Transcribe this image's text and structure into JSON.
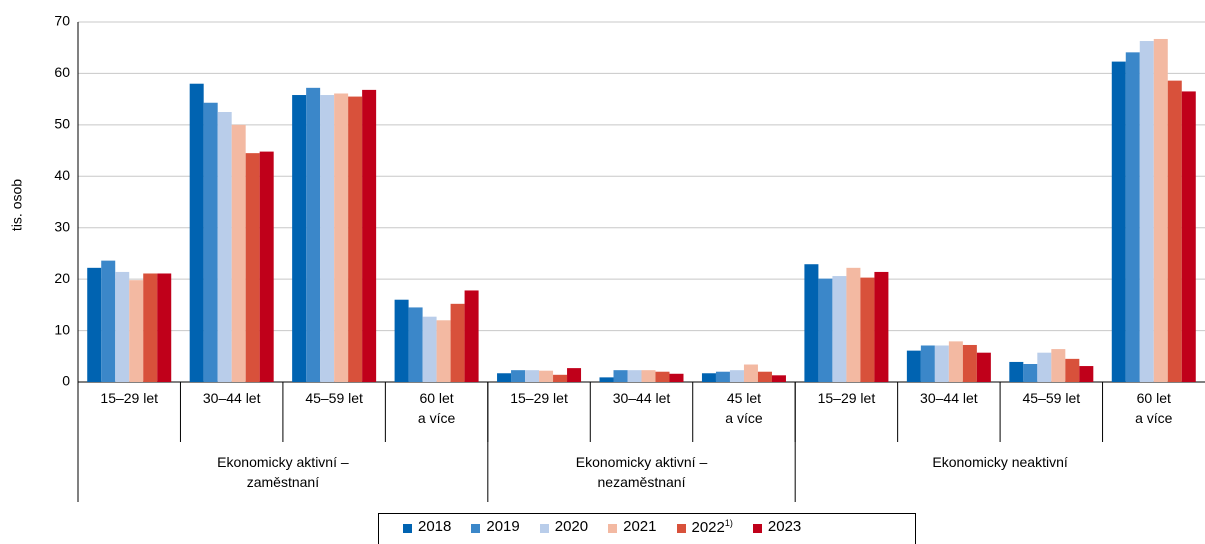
{
  "chart_data": {
    "type": "bar",
    "y_label": "tis. osob",
    "ylim": [
      0,
      70
    ],
    "yticks": [
      0,
      10,
      20,
      30,
      40,
      50,
      60,
      70
    ],
    "grid": true,
    "categories": [
      "15–29 let",
      "30–44 let",
      "45–59 let",
      "60 let\na více",
      "15–29 let",
      "30–44 let",
      "45 let\na více",
      "15–29 let",
      "30–44 let",
      "45–59 let",
      "60 let\na více"
    ],
    "groups": [
      {
        "label": "Ekonomicky aktivní –\nzaměstnaní",
        "count": 4
      },
      {
        "label": "Ekonomicky aktivní –\nnezaměstnaní",
        "count": 3
      },
      {
        "label": "Ekonomicky neaktivní",
        "count": 4
      }
    ],
    "legend": "bottom",
    "series": [
      {
        "name": "2018",
        "color": "#0063b1",
        "values": [
          22.2,
          58,
          55.8,
          16,
          1.7,
          0.9,
          1.7,
          22.9,
          6.1,
          3.9,
          62.3
        ]
      },
      {
        "name": "2019",
        "color": "#3b87c9",
        "values": [
          23.6,
          54.3,
          57.2,
          14.5,
          2.3,
          2.3,
          2.0,
          20.1,
          7.1,
          3.5,
          64.1
        ]
      },
      {
        "name": "2020",
        "color": "#b9cdea",
        "values": [
          21.4,
          52.5,
          55.8,
          12.7,
          2.3,
          2.3,
          2.3,
          20.6,
          7.1,
          5.7,
          66.3
        ]
      },
      {
        "name": "2021",
        "color": "#f3b9a2",
        "values": [
          19.8,
          50,
          56.1,
          12,
          2.2,
          2.3,
          3.4,
          22.2,
          7.9,
          6.4,
          66.7
        ]
      },
      {
        "name": "2022",
        "note": "1)",
        "color": "#d8513b",
        "values": [
          21.1,
          44.5,
          55.5,
          15.2,
          1.4,
          2.0,
          2.0,
          20.3,
          7.2,
          4.5,
          58.6
        ]
      },
      {
        "name": "2023",
        "color": "#c0001a",
        "values": [
          21.1,
          44.8,
          56.8,
          17.8,
          2.7,
          1.6,
          1.3,
          21.4,
          5.7,
          3.1,
          56.5
        ]
      }
    ]
  }
}
